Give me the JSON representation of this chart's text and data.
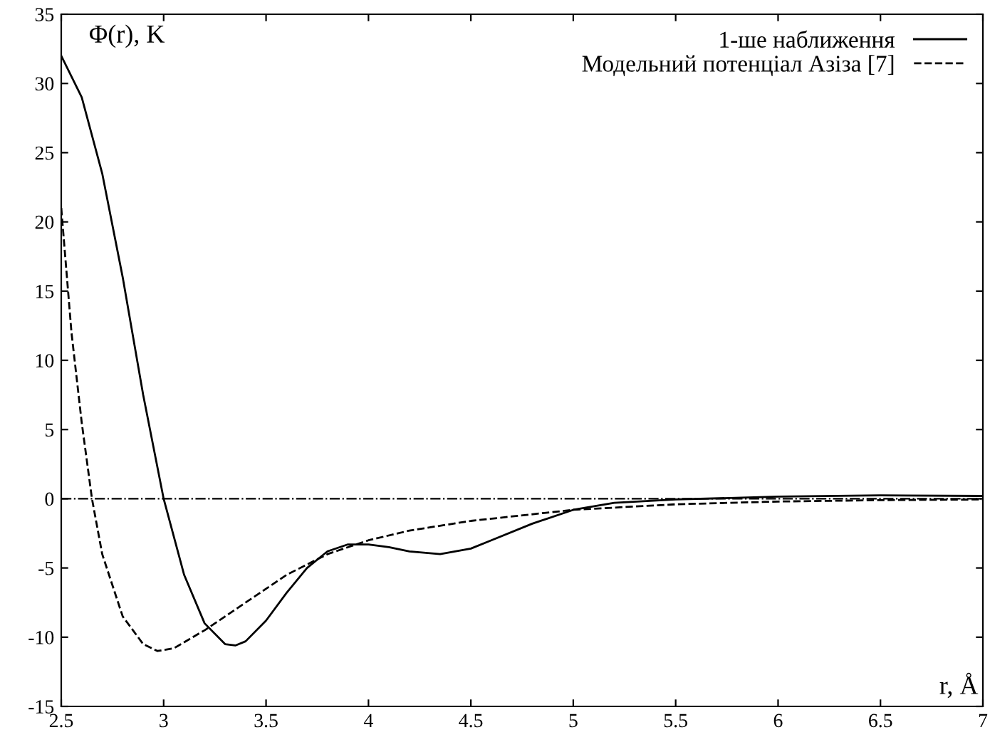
{
  "chart_data": {
    "type": "line",
    "xlabel": "r, Å",
    "ylabel": "Φ(r), K",
    "xlim": [
      2.5,
      7
    ],
    "xticks": [
      2.5,
      3,
      3.5,
      4,
      4.5,
      5,
      5.5,
      6,
      6.5,
      7
    ],
    "ylim": [
      -15,
      35
    ],
    "yticks": [
      -15,
      -10,
      -5,
      0,
      5,
      10,
      15,
      20,
      25,
      30,
      35
    ],
    "grid": false,
    "legend": "top right",
    "marker": "none",
    "ref_lines": [
      {
        "axis": "y",
        "value": 0,
        "color": "#000000",
        "line_style": "dashdot"
      }
    ],
    "series": [
      {
        "name": "1-ше наближення",
        "color": "#000000",
        "line_style": "solid",
        "x": [
          2.5,
          2.6,
          2.7,
          2.8,
          2.9,
          3.0,
          3.1,
          3.2,
          3.3,
          3.35,
          3.4,
          3.5,
          3.6,
          3.7,
          3.8,
          3.9,
          4.0,
          4.1,
          4.2,
          4.35,
          4.5,
          4.6,
          4.8,
          5.0,
          5.2,
          5.5,
          6.0,
          6.5,
          7.0
        ],
        "values": [
          32,
          29,
          23.5,
          16,
          7.5,
          0,
          -5.5,
          -9,
          -10.5,
          -10.6,
          -10.3,
          -8.8,
          -6.8,
          -5,
          -3.8,
          -3.3,
          -3.3,
          -3.5,
          -3.8,
          -4.0,
          -3.6,
          -3.0,
          -1.8,
          -0.8,
          -0.3,
          -0.05,
          0.15,
          0.25,
          0.2
        ]
      },
      {
        "name": "Модельний потенціал Азіза [7]",
        "color": "#000000",
        "line_style": "dashed",
        "x": [
          2.5,
          2.55,
          2.6,
          2.65,
          2.7,
          2.8,
          2.9,
          2.97,
          3.05,
          3.2,
          3.4,
          3.6,
          3.8,
          4.0,
          4.2,
          4.5,
          5.0,
          5.5,
          6.0,
          6.5,
          7.0
        ],
        "values": [
          21,
          12,
          5.5,
          0,
          -4,
          -8.5,
          -10.5,
          -11,
          -10.8,
          -9.5,
          -7.5,
          -5.5,
          -4,
          -3,
          -2.3,
          -1.6,
          -0.8,
          -0.4,
          -0.2,
          -0.1,
          -0.05
        ]
      }
    ]
  }
}
